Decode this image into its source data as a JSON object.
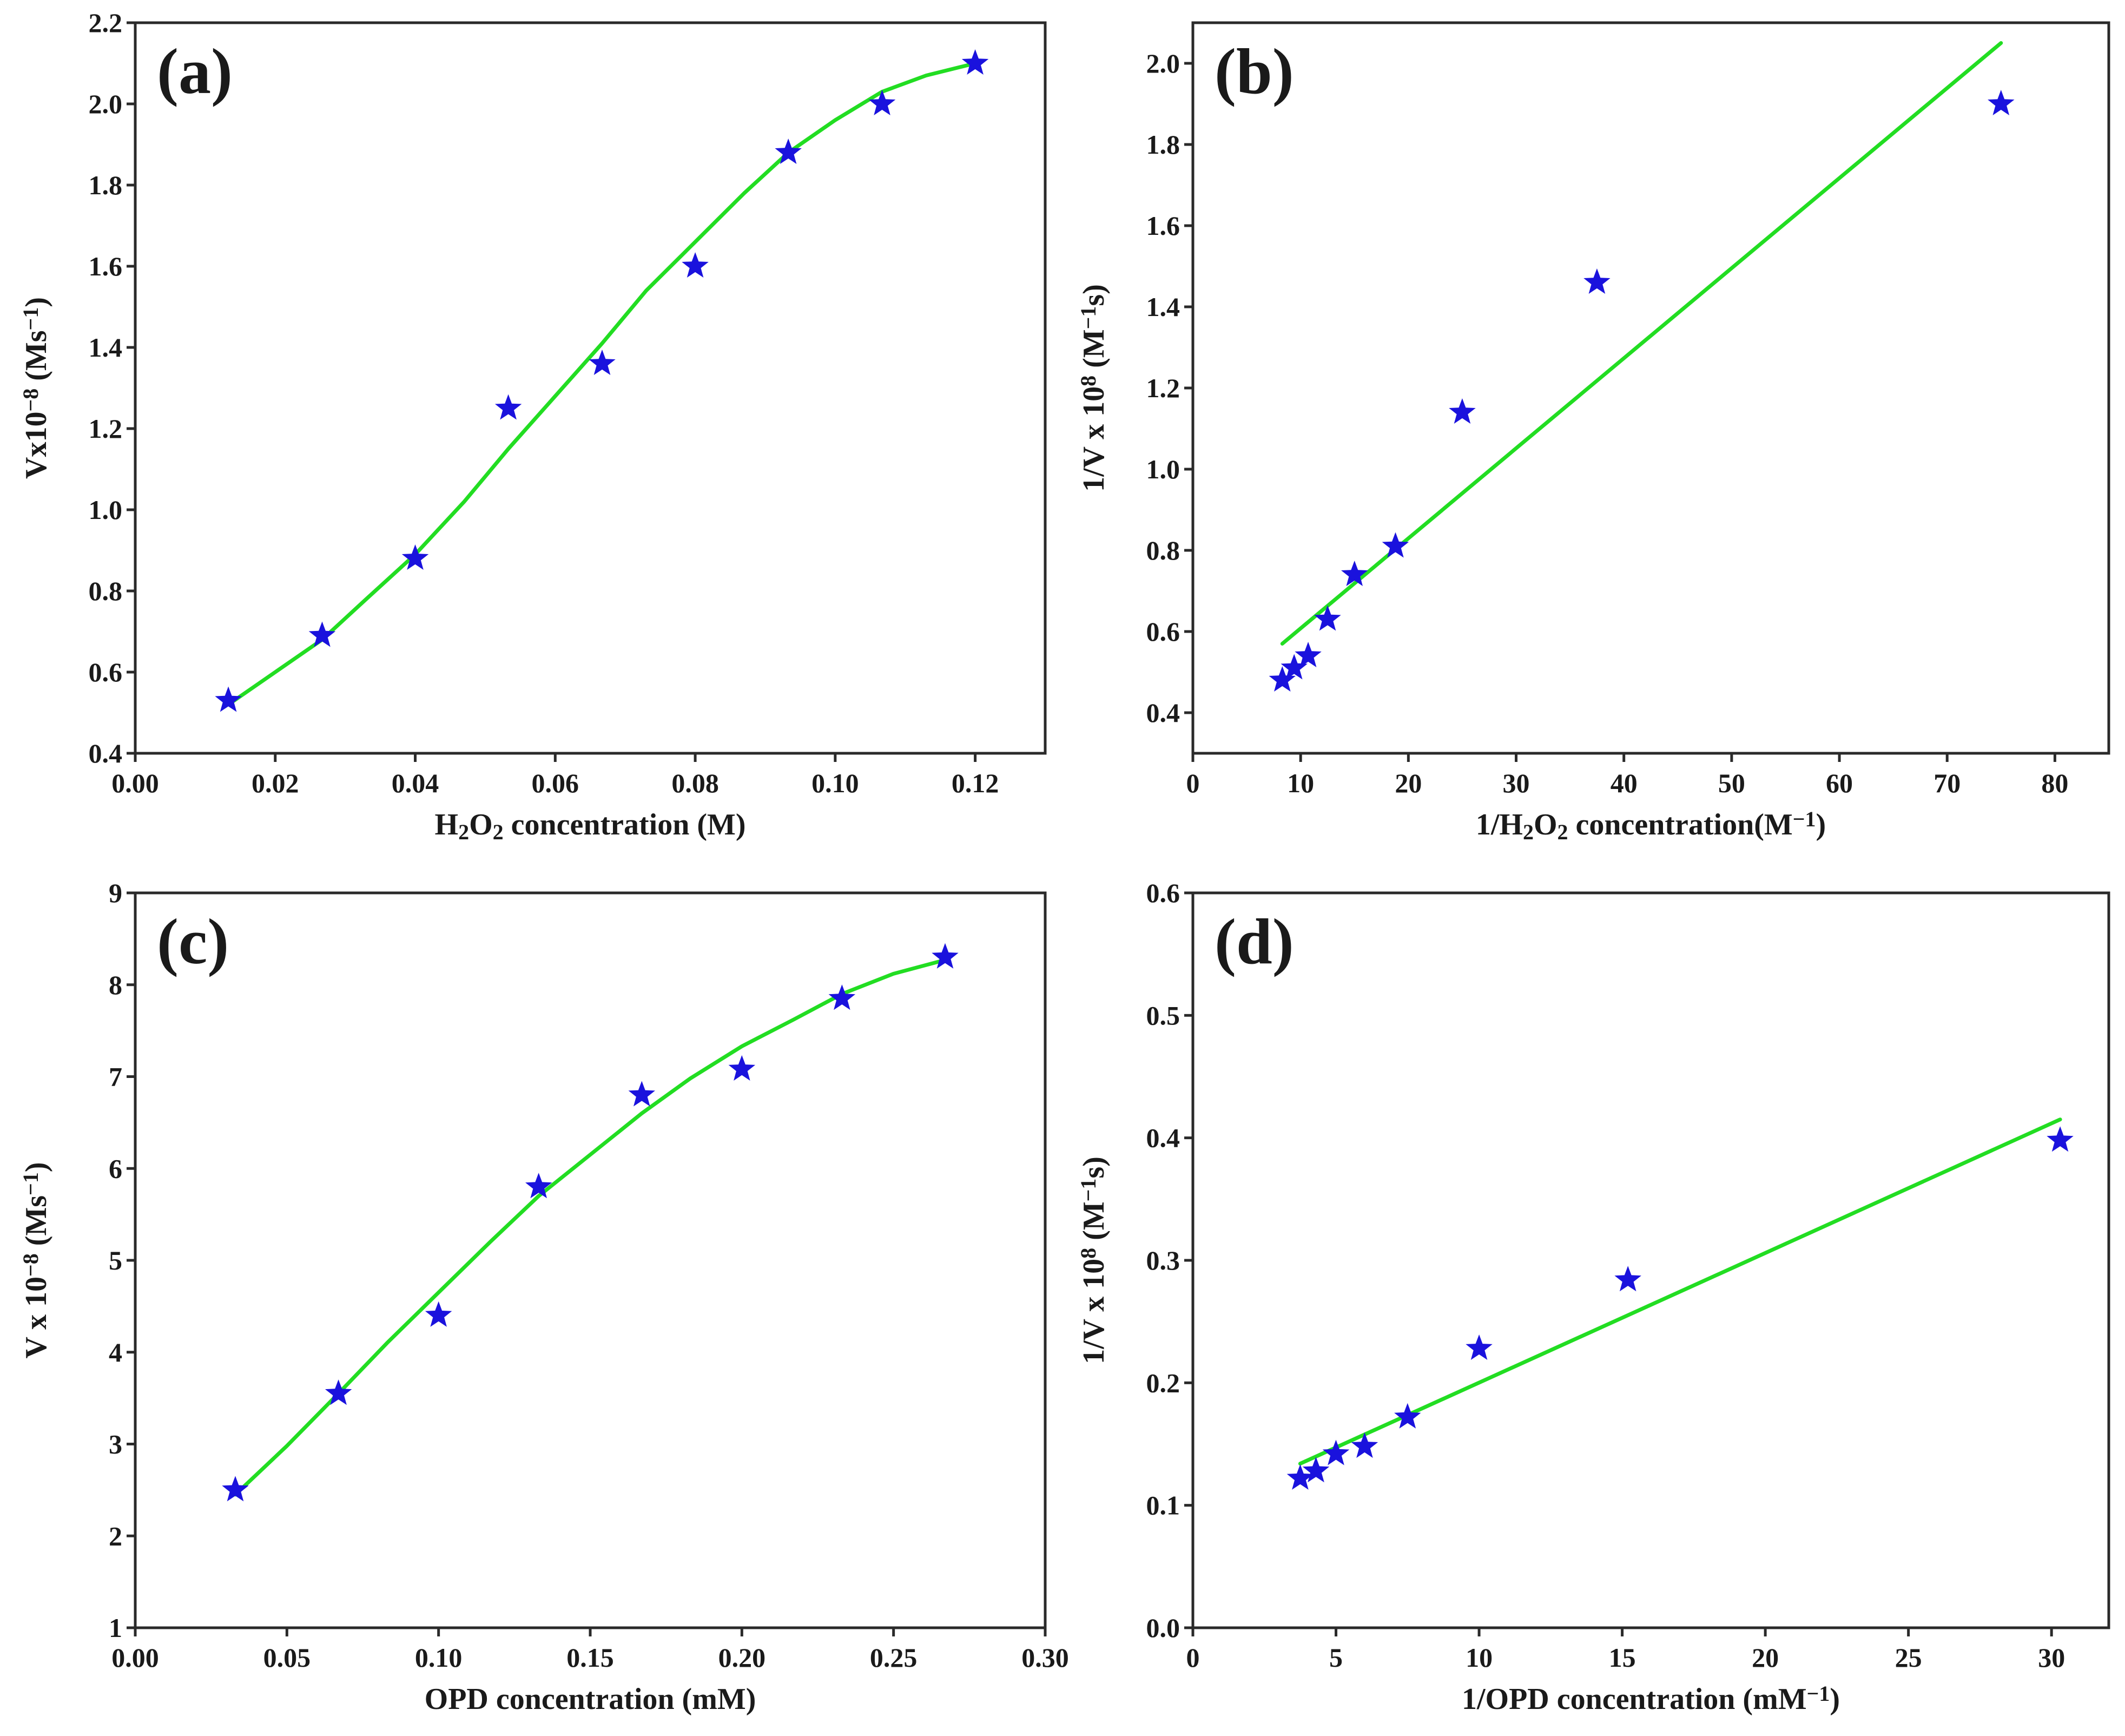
{
  "chart_data": [
    {
      "type": "scatter",
      "panel_label": "(a)",
      "xlabel": "H2O2 concentration (M)",
      "xlabel_parts": [
        "H",
        "2",
        "O",
        "2",
        " concentration (M)"
      ],
      "ylabel": "Vx10^-8 (Ms^-1)",
      "ylabel_parts": [
        "Vx10",
        "−8",
        " (Ms",
        "−1",
        ")"
      ],
      "xlim": [
        0,
        0.13
      ],
      "ylim": [
        0.4,
        2.2
      ],
      "xticks": [
        0,
        0.02,
        0.04,
        0.06,
        0.08,
        0.1,
        0.12
      ],
      "xtick_labels": [
        "0.00",
        "0.02",
        "0.04",
        "0.06",
        "0.08",
        "0.10",
        "0.12"
      ],
      "yticks": [
        0.4,
        0.6,
        0.8,
        1.0,
        1.2,
        1.4,
        1.6,
        1.8,
        2.0,
        2.2
      ],
      "ytick_labels": [
        "0.4",
        "0.6",
        "0.8",
        "1.0",
        "1.2",
        "1.4",
        "1.6",
        "1.8",
        "2.0",
        "2.2"
      ],
      "series": [
        {
          "name": "data",
          "marker": "star",
          "color": "#1a12dd",
          "x": [
            0.0133,
            0.0267,
            0.04,
            0.0533,
            0.0667,
            0.08,
            0.0933,
            0.1067,
            0.12
          ],
          "y": [
            0.53,
            0.69,
            0.88,
            1.25,
            1.36,
            1.6,
            1.88,
            2.0,
            2.1
          ]
        },
        {
          "name": "fit",
          "style": "line",
          "color": "#22dd22",
          "x": [
            0.0133,
            0.02,
            0.0267,
            0.033,
            0.04,
            0.047,
            0.0533,
            0.06,
            0.0667,
            0.073,
            0.08,
            0.087,
            0.0933,
            0.1,
            0.1067,
            0.113,
            0.12
          ],
          "y": [
            0.52,
            0.6,
            0.68,
            0.78,
            0.89,
            1.02,
            1.15,
            1.28,
            1.41,
            1.54,
            1.66,
            1.78,
            1.88,
            1.96,
            2.03,
            2.07,
            2.1
          ]
        }
      ]
    },
    {
      "type": "scatter",
      "panel_label": "(b)",
      "xlabel": "1/H2O2 concentration(M^-1)",
      "xlabel_parts": [
        "1/H",
        "2",
        "O",
        "2",
        " concentration(M",
        "−1",
        ")"
      ],
      "ylabel": "1/V x 10^8 (M^-1 s)",
      "ylabel_parts": [
        "1/V x 10",
        "8",
        " (M",
        "−1",
        "s)"
      ],
      "xlim": [
        0,
        85
      ],
      "ylim": [
        0.3,
        2.1
      ],
      "xticks": [
        0,
        10,
        20,
        30,
        40,
        50,
        60,
        70,
        80
      ],
      "xtick_labels": [
        "0",
        "10",
        "20",
        "30",
        "40",
        "50",
        "60",
        "70",
        "80"
      ],
      "yticks": [
        0.4,
        0.6,
        0.8,
        1.0,
        1.2,
        1.4,
        1.6,
        1.8,
        2.0
      ],
      "ytick_labels": [
        "0.4",
        "0.6",
        "0.8",
        "1.0",
        "1.2",
        "1.4",
        "1.6",
        "1.8",
        "2.0"
      ],
      "series": [
        {
          "name": "data",
          "marker": "star",
          "color": "#1a12dd",
          "x": [
            8.3,
            9.4,
            10.7,
            12.5,
            15.0,
            18.8,
            25.0,
            37.5,
            75.0
          ],
          "y": [
            0.48,
            0.51,
            0.54,
            0.63,
            0.74,
            0.81,
            1.14,
            1.46,
            1.9
          ]
        },
        {
          "name": "fit",
          "style": "line",
          "color": "#22dd22",
          "x": [
            8.3,
            75.0
          ],
          "y": [
            0.57,
            2.05
          ]
        }
      ]
    },
    {
      "type": "scatter",
      "panel_label": "(c)",
      "xlabel": "OPD concentration (mM)",
      "xlabel_parts": [
        "OPD concentration (mM)"
      ],
      "ylabel": "V x 10^-8 (Ms^-1)",
      "ylabel_parts": [
        "V x 10",
        "−8",
        " (Ms",
        "−1",
        ")"
      ],
      "xlim": [
        0,
        0.3
      ],
      "ylim": [
        1,
        9
      ],
      "xticks": [
        0,
        0.05,
        0.1,
        0.15,
        0.2,
        0.25,
        0.3
      ],
      "xtick_labels": [
        "0.00",
        "0.05",
        "0.10",
        "0.15",
        "0.20",
        "0.25",
        "0.30"
      ],
      "yticks": [
        1,
        2,
        3,
        4,
        5,
        6,
        7,
        8,
        9
      ],
      "ytick_labels": [
        "1",
        "2",
        "3",
        "4",
        "5",
        "6",
        "7",
        "8",
        "9"
      ],
      "series": [
        {
          "name": "data",
          "marker": "star",
          "color": "#1a12dd",
          "x": [
            0.033,
            0.067,
            0.1,
            0.133,
            0.167,
            0.2,
            0.233,
            0.267
          ],
          "y": [
            2.5,
            3.55,
            4.4,
            5.8,
            6.8,
            7.08,
            7.85,
            8.3
          ]
        },
        {
          "name": "fit",
          "style": "line",
          "color": "#22dd22",
          "x": [
            0.033,
            0.05,
            0.067,
            0.083,
            0.1,
            0.117,
            0.133,
            0.15,
            0.167,
            0.183,
            0.2,
            0.217,
            0.233,
            0.25,
            0.267
          ],
          "y": [
            2.45,
            2.98,
            3.55,
            4.1,
            4.65,
            5.2,
            5.7,
            6.15,
            6.6,
            6.98,
            7.33,
            7.62,
            7.9,
            8.12,
            8.27
          ]
        }
      ]
    },
    {
      "type": "scatter",
      "panel_label": "(d)",
      "xlabel": "1/OPD concentration (mM^-1)",
      "xlabel_parts": [
        "1/OPD concentration (mM",
        "−1",
        ")"
      ],
      "ylabel": "1/V x 10^8 (M^-1 s)",
      "ylabel_parts": [
        "1/V x 10",
        "8",
        " (M",
        "−1",
        "s)"
      ],
      "xlim": [
        0,
        32
      ],
      "ylim": [
        0,
        0.6
      ],
      "xticks": [
        0,
        5,
        10,
        15,
        20,
        25,
        30
      ],
      "xtick_labels": [
        "0",
        "5",
        "10",
        "15",
        "20",
        "25",
        "30"
      ],
      "yticks": [
        0,
        0.1,
        0.2,
        0.3,
        0.4,
        0.5,
        0.6
      ],
      "ytick_labels": [
        "0.0",
        "0.1",
        "0.2",
        "0.3",
        "0.4",
        "0.5",
        "0.6"
      ],
      "series": [
        {
          "name": "data",
          "marker": "star",
          "color": "#1a12dd",
          "x": [
            3.75,
            4.3,
            5.0,
            6.0,
            7.5,
            10.0,
            15.2,
            30.3
          ],
          "y": [
            0.122,
            0.128,
            0.142,
            0.148,
            0.172,
            0.228,
            0.284,
            0.398
          ]
        },
        {
          "name": "fit",
          "style": "line",
          "color": "#22dd22",
          "x": [
            3.75,
            30.3
          ],
          "y": [
            0.134,
            0.415
          ]
        }
      ]
    }
  ]
}
